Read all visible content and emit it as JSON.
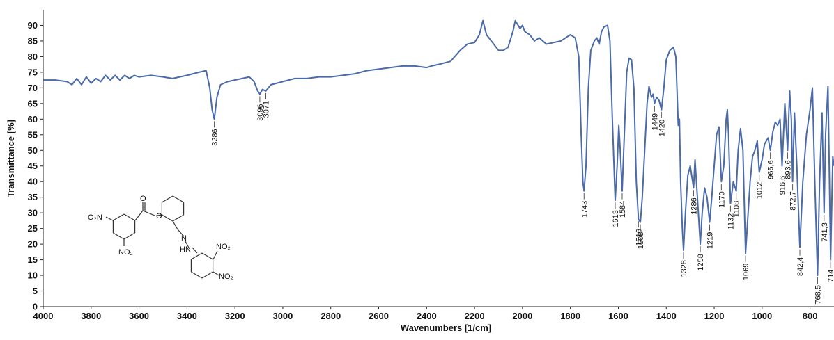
{
  "chart_data": {
    "type": "line",
    "xlabel": "Wavenumbers [1/cm]",
    "ylabel": "Transmittance [%]",
    "xlim": [
      4000,
      700
    ],
    "ylim": [
      0,
      95
    ],
    "xticks": [
      4000,
      3800,
      3600,
      3400,
      3200,
      3000,
      2800,
      2600,
      2400,
      2200,
      2000,
      1800,
      1600,
      1400,
      1200,
      1000,
      800
    ],
    "yticks": [
      0,
      5,
      10,
      15,
      20,
      25,
      30,
      35,
      40,
      45,
      50,
      55,
      60,
      65,
      70,
      75,
      80,
      85,
      90
    ],
    "color": "#4a6aaa",
    "x": [
      4000,
      3950,
      3900,
      3880,
      3860,
      3840,
      3820,
      3800,
      3780,
      3760,
      3740,
      3720,
      3700,
      3680,
      3660,
      3640,
      3620,
      3600,
      3550,
      3500,
      3460,
      3400,
      3350,
      3320,
      3305,
      3295,
      3286,
      3275,
      3260,
      3230,
      3200,
      3170,
      3140,
      3120,
      3105,
      3096,
      3085,
      3071,
      3050,
      3000,
      2950,
      2900,
      2850,
      2800,
      2750,
      2700,
      2650,
      2600,
      2550,
      2500,
      2450,
      2400,
      2380,
      2350,
      2300,
      2260,
      2230,
      2200,
      2180,
      2165,
      2150,
      2120,
      2100,
      2080,
      2060,
      2040,
      2030,
      2010,
      2000,
      1990,
      1970,
      1950,
      1930,
      1900,
      1870,
      1840,
      1820,
      1800,
      1780,
      1765,
      1755,
      1748,
      1743,
      1735,
      1725,
      1715,
      1700,
      1690,
      1680,
      1670,
      1660,
      1645,
      1635,
      1625,
      1613,
      1605,
      1598,
      1592,
      1584,
      1575,
      1565,
      1555,
      1545,
      1535,
      1525,
      1516,
      1508,
      1500,
      1490,
      1480,
      1472,
      1462,
      1455,
      1449,
      1440,
      1430,
      1420,
      1410,
      1400,
      1385,
      1370,
      1360,
      1350,
      1345,
      1340,
      1333,
      1328,
      1320,
      1310,
      1300,
      1290,
      1286,
      1280,
      1270,
      1258,
      1250,
      1240,
      1230,
      1219,
      1210,
      1200,
      1190,
      1180,
      1170,
      1160,
      1150,
      1145,
      1140,
      1132,
      1120,
      1108,
      1100,
      1090,
      1080,
      1069,
      1060,
      1050,
      1040,
      1030,
      1020,
      1012,
      1000,
      990,
      975,
      965.6,
      955,
      945,
      935,
      925,
      916.6,
      905,
      893.6,
      885,
      878,
      872.7,
      865,
      855,
      842.4,
      830,
      815,
      800,
      790,
      780,
      768.5,
      760,
      750,
      741.3,
      735,
      725,
      714,
      705,
      700
    ],
    "values": [
      72.5,
      72.5,
      72,
      71,
      73,
      71,
      73.5,
      71.5,
      73,
      72,
      74,
      72.5,
      74,
      72.5,
      74,
      73,
      74,
      73.5,
      74,
      73.5,
      73,
      74,
      75,
      75.5,
      70,
      63,
      60,
      67,
      71,
      72,
      72.5,
      73,
      73.5,
      72,
      69,
      68,
      69.5,
      69,
      71,
      72,
      73,
      73,
      73.5,
      73.5,
      74,
      74.5,
      75.5,
      76,
      76.5,
      77,
      77,
      76.5,
      77,
      77.5,
      78.5,
      82,
      84,
      84.5,
      87,
      91.5,
      87,
      84,
      82,
      82,
      83,
      88,
      91.5,
      89,
      90,
      88,
      87,
      85,
      86,
      84,
      84.5,
      85,
      86,
      87,
      86,
      80,
      55,
      40,
      37,
      45,
      70,
      82,
      85,
      86,
      84,
      88,
      89.5,
      90,
      85,
      60,
      34,
      45,
      58,
      50,
      37,
      55,
      75,
      79.5,
      79,
      70,
      40,
      28,
      27,
      35,
      50,
      65,
      70.5,
      67,
      68,
      65,
      67,
      66,
      63,
      70,
      79,
      82,
      83,
      80,
      58,
      60,
      40,
      25,
      18,
      30,
      42,
      45,
      40,
      38,
      47,
      35,
      20,
      30,
      38,
      35,
      27,
      35,
      45,
      55,
      57.5,
      40,
      45,
      60,
      63,
      55,
      33,
      40,
      37,
      50,
      57,
      50,
      17,
      28,
      40,
      48,
      50,
      53,
      43,
      47,
      52,
      54,
      50,
      56,
      59,
      58,
      60,
      45,
      65,
      50,
      69,
      60,
      40,
      62,
      45,
      19,
      40,
      55,
      63,
      70,
      40,
      10,
      40,
      62,
      30,
      55,
      70.5,
      15,
      48,
      45
    ],
    "annotations": [
      {
        "x": 3286,
        "label": "3286"
      },
      {
        "x": 3096,
        "label": "3096"
      },
      {
        "x": 3071,
        "label": "3071"
      },
      {
        "x": 1743,
        "label": "1743"
      },
      {
        "x": 1613,
        "label": "1613"
      },
      {
        "x": 1584,
        "label": "1584"
      },
      {
        "x": 1516,
        "label": "1516"
      },
      {
        "x": 1508,
        "label": "1508"
      },
      {
        "x": 1449,
        "label": "1449"
      },
      {
        "x": 1420,
        "label": "1420"
      },
      {
        "x": 1328,
        "label": "1328"
      },
      {
        "x": 1286,
        "label": "1286"
      },
      {
        "x": 1258,
        "label": "1258"
      },
      {
        "x": 1219,
        "label": "1219"
      },
      {
        "x": 1170,
        "label": "1170"
      },
      {
        "x": 1132,
        "label": "1132"
      },
      {
        "x": 1108,
        "label": "1108"
      },
      {
        "x": 1069,
        "label": "1069"
      },
      {
        "x": 1012,
        "label": "1012"
      },
      {
        "x": 965.6,
        "label": "965,6"
      },
      {
        "x": 916.6,
        "label": "916,6"
      },
      {
        "x": 893.6,
        "label": "893,6"
      },
      {
        "x": 872.7,
        "label": "872,7"
      },
      {
        "x": 842.4,
        "label": "842,4"
      },
      {
        "x": 768.5,
        "label": "768,5"
      },
      {
        "x": 741.3,
        "label": "741,3"
      },
      {
        "x": 714,
        "label": "714"
      }
    ]
  },
  "structure": {
    "labels": [
      "O₂N",
      "NO₂",
      "O",
      "O",
      "N",
      "HN",
      "NO₂",
      "NO₂"
    ]
  }
}
